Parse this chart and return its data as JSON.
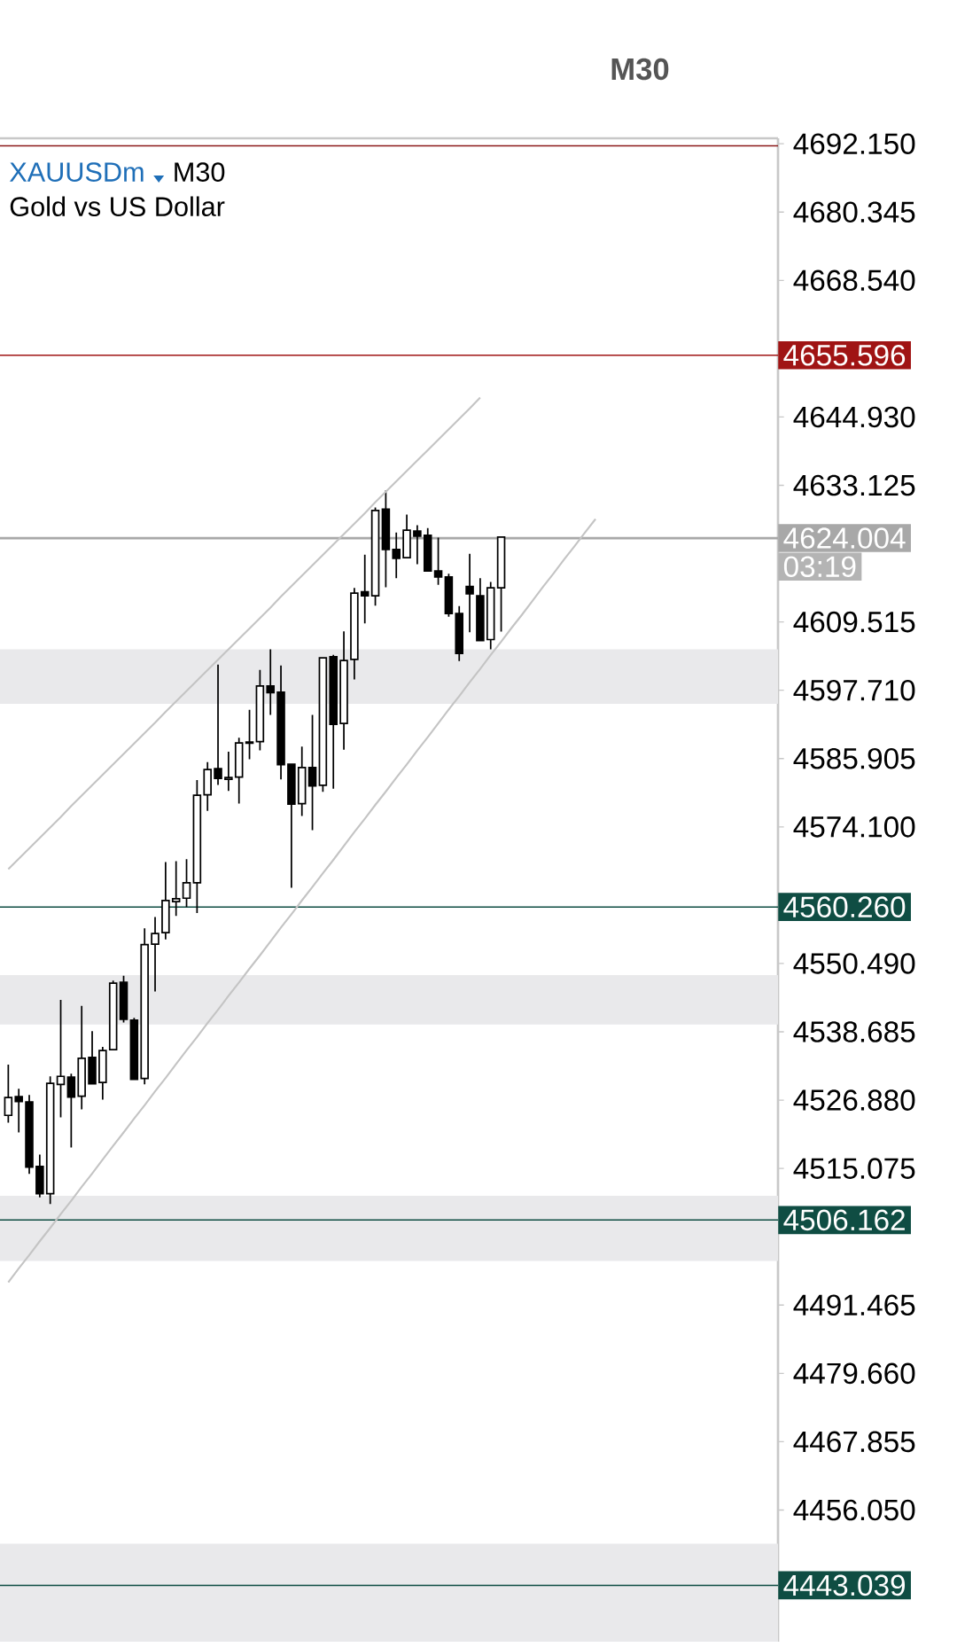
{
  "chart_data": {
    "type": "candlestick",
    "title": "XAUUSDm",
    "subtitle": "Gold vs US Dollar",
    "annotations": [
      "M30",
      "M30",
      "03:19"
    ],
    "categories": [
      null,
      null,
      null,
      null,
      null,
      null,
      null,
      null,
      null,
      null,
      null,
      null,
      null,
      null,
      null,
      null,
      null,
      null,
      null,
      null,
      null,
      null,
      null,
      null,
      null,
      null,
      null,
      null,
      null,
      null,
      null,
      null,
      null,
      null,
      null,
      null,
      null,
      null,
      null,
      null,
      null,
      null,
      null,
      null,
      null,
      null,
      null,
      null,
      null,
      null,
      null,
      null,
      null,
      null,
      null,
      null,
      null
    ],
    "series": [
      {
        "color": "#000000",
        "ohlc": [
          [
            4524.25,
            4533.03,
            4522.97,
            4527.32
          ],
          [
            4527.47,
            4528.85,
            4521.29,
            4526.65
          ],
          [
            4526.55,
            4527.78,
            4514.14,
            4515.31
          ],
          [
            4515.42,
            4517.46,
            4510.1,
            4510.72
          ],
          [
            4510.72,
            4530.99,
            4508.93,
            4529.77
          ],
          [
            4529.61,
            4544.22,
            4523.89,
            4530.99
          ],
          [
            4530.84,
            4531.45,
            4518.68,
            4527.42
          ],
          [
            4527.57,
            4543.15,
            4525.27,
            4534.11
          ],
          [
            4534.26,
            4538.81,
            4529.72,
            4529.72
          ],
          [
            4529.92,
            4536.1,
            4526.96,
            4535.44
          ],
          [
            4535.59,
            4547.54,
            4535.59,
            4547.08
          ],
          [
            4547.23,
            4548.36,
            4540.29,
            4540.85
          ],
          [
            4540.7,
            4541.1,
            4530.48,
            4530.48
          ],
          [
            4530.63,
            4556.58,
            4529.61,
            4553.77
          ],
          [
            4553.82,
            4558.52,
            4545.65,
            4555.66
          ],
          [
            4555.81,
            4568.01,
            4554.64,
            4561.38
          ],
          [
            4561.17,
            4568.17,
            4558.72,
            4561.68
          ],
          [
            4561.78,
            4568.53,
            4560.25,
            4564.44
          ],
          [
            4564.44,
            4582.21,
            4559.23,
            4579.56
          ],
          [
            4579.66,
            4585.28,
            4576.85,
            4584.0
          ],
          [
            4584.15,
            4602.13,
            4581.34,
            4582.47
          ],
          [
            4582.31,
            4587.11,
            4580.32,
            4582.62
          ],
          [
            4582.72,
            4589.52,
            4578.13,
            4588.6
          ],
          [
            4588.75,
            4594.32,
            4585.79,
            4588.55
          ],
          [
            4588.85,
            4601.21,
            4587.32,
            4598.45
          ],
          [
            4598.45,
            4604.79,
            4593.45,
            4597.28
          ],
          [
            4597.38,
            4601.98,
            4582.31,
            4584.87
          ],
          [
            4584.92,
            4584.92,
            4563.57,
            4578.02
          ],
          [
            4578.13,
            4587.98,
            4575.98,
            4584.36
          ],
          [
            4584.36,
            4593.45,
            4573.53,
            4581.19
          ],
          [
            4581.29,
            4603.3,
            4580.17,
            4603.3
          ],
          [
            4603.5,
            4603.81,
            4580.68,
            4591.81
          ],
          [
            4591.96,
            4607.9,
            4587.42,
            4602.84
          ],
          [
            4603.05,
            4615.4,
            4599.57,
            4614.48
          ],
          [
            4614.74,
            4621.12,
            4609.28,
            4614.03
          ],
          [
            4614.03,
            4629.3,
            4612.34,
            4628.78
          ],
          [
            4628.99,
            4632.26,
            4615.51,
            4622.04
          ],
          [
            4622.04,
            4624.95,
            4617.09,
            4620.51
          ],
          [
            4620.61,
            4628.07,
            4620.51,
            4625.36
          ],
          [
            4625.21,
            4626.23,
            4619.49,
            4624.34
          ],
          [
            4624.49,
            4625.72,
            4618.32,
            4618.32
          ],
          [
            4618.32,
            4624.09,
            4615.92,
            4617.29
          ],
          [
            4617.29,
            4617.86,
            4610.4,
            4610.96
          ],
          [
            4610.96,
            4612.24,
            4602.74,
            4604.07
          ],
          [
            4615.66,
            4621.28,
            4607.74,
            4614.38
          ],
          [
            4614.03,
            4617.09,
            4606.31,
            4606.31
          ],
          [
            4606.47,
            4616.43,
            4604.78,
            4615.4
          ],
          [
            4615.4,
            4624.19,
            4607.85,
            4624.19
          ],
          null,
          null,
          null,
          null,
          null,
          null,
          null,
          null,
          null
        ]
      },
      {
        "type": "line",
        "color": "#c4c4c4",
        "values": [
          4566.8,
          4568.6,
          4570.4,
          4572.2,
          4574.0,
          4575.8,
          4577.7,
          4579.5,
          4581.3,
          4583.1,
          4584.9,
          4586.7,
          4588.5,
          4590.3,
          4592.1,
          4594.0,
          4595.8,
          4597.6,
          4599.4,
          4601.2,
          4603.0,
          4604.8,
          4606.6,
          4608.4,
          4610.2,
          4612.0,
          4613.9,
          4615.7,
          4617.5,
          4619.3,
          4621.1,
          4622.9,
          4624.7,
          4626.5,
          4628.3,
          4630.2,
          4632.0,
          4633.8,
          4635.6,
          4637.4,
          4639.2,
          4641.0,
          4642.8,
          4644.6,
          4646.4,
          4648.3,
          null,
          null,
          null,
          null,
          null,
          null,
          null,
          null,
          null,
          null,
          null
        ]
      },
      {
        "type": "line",
        "color": "#c4c4c4",
        "values": [
          4495.4,
          4497.8,
          4500.1,
          4502.5,
          4504.8,
          4507.2,
          4509.5,
          4511.9,
          4514.2,
          4516.6,
          4519.0,
          4521.3,
          4523.7,
          4526.0,
          4528.4,
          4530.7,
          4533.1,
          4535.5,
          4537.8,
          4540.2,
          4542.5,
          4544.9,
          4547.2,
          4549.6,
          4551.9,
          4554.3,
          4556.7,
          4559.0,
          4561.4,
          4563.7,
          4566.1,
          4568.4,
          4570.8,
          4573.2,
          4575.5,
          4577.9,
          4580.2,
          4582.6,
          4584.9,
          4587.3,
          4589.6,
          4592.0,
          4594.4,
          4596.7,
          4599.1,
          4601.4,
          4603.8,
          4606.1,
          4608.5,
          4610.8,
          4613.2,
          4615.6,
          4617.9,
          4620.3,
          4622.6,
          4625.0,
          4627.3
        ]
      }
    ],
    "ylim": [
      4433.3,
      4693.1
    ],
    "yticks": [
      {
        "value": 4692.15,
        "label": "4692.150"
      },
      4680.345,
      {
        "value": 4668.54,
        "label": "4668.540"
      },
      {
        "value": 4644.93,
        "label": "4644.930"
      },
      4633.125,
      4609.515,
      {
        "value": 4597.71,
        "label": "4597.710"
      },
      4585.905,
      {
        "value": 4574.1,
        "label": "4574.100"
      },
      {
        "value": 4550.49,
        "label": "4550.490"
      },
      4538.685,
      {
        "value": 4526.88,
        "label": "4526.880"
      },
      4515.075,
      4491.465,
      {
        "value": 4479.66,
        "label": "4479.660"
      },
      4467.855,
      {
        "value": 4456.05,
        "label": "4456.050"
      }
    ],
    "tick_labels": "y",
    "bands": [
      {
        "axis": "y",
        "from": 4595.35,
        "to": 4604.79,
        "color": "#e9e9eb"
      },
      {
        "axis": "y",
        "from": 4539.96,
        "to": 4548.49,
        "color": "#e9e9eb"
      },
      {
        "axis": "y",
        "from": 4499.09,
        "to": 4510.35,
        "color": "#e9e9eb"
      },
      {
        "axis": "y",
        "from": 4433.3,
        "to": 4450.24,
        "color": "#e9e9eb"
      }
    ],
    "ref_lines": [
      {
        "axis": "y",
        "value": 4691.8,
        "color": "#8b1a1a"
      },
      {
        "axis": "y",
        "value": 4655.596,
        "label": "4655.596",
        "color": "#a01414"
      },
      {
        "axis": "y",
        "value": 4624.004,
        "label": "4624.004",
        "color": "#a8a8a8"
      },
      {
        "axis": "y",
        "value": 4560.26,
        "label": "4560.260",
        "color": "#0f4d43"
      },
      {
        "axis": "y",
        "value": 4506.162,
        "label": "4506.162",
        "color": "#0f4d43"
      },
      {
        "axis": "y",
        "value": 4443.039,
        "label": "4443.039",
        "color": "#0f4d43"
      }
    ]
  }
}
